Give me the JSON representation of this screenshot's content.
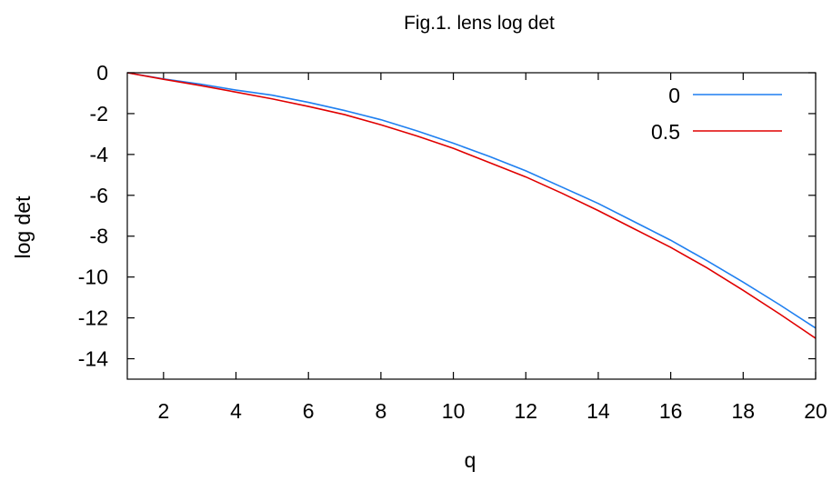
{
  "chart_data": {
    "type": "line",
    "title": "Fig.1. lens log det",
    "xlabel": "q",
    "ylabel": "log det",
    "xlim": [
      1,
      20
    ],
    "ylim": [
      -15,
      0
    ],
    "xticks": [
      2,
      4,
      6,
      8,
      10,
      12,
      14,
      16,
      18,
      20
    ],
    "yticks": [
      0,
      -2,
      -4,
      -6,
      -8,
      -10,
      -12,
      -14
    ],
    "xtick_labels": [
      "2",
      "4",
      "6",
      "8",
      "10",
      "12",
      "14",
      "16",
      "18",
      "20"
    ],
    "ytick_labels": [
      "0",
      "-2",
      "-4",
      "-6",
      "-8",
      "-10",
      "-12",
      "-14"
    ],
    "legend_position": "top-right",
    "zero_line": true,
    "grid": false,
    "series": [
      {
        "name": "0",
        "color": "#1e7ff0",
        "x": [
          1,
          2,
          3,
          4,
          5,
          6,
          7,
          8,
          9,
          10,
          11,
          12,
          13,
          14,
          15,
          16,
          17,
          18,
          19,
          20
        ],
        "y": [
          0.0,
          -0.3,
          -0.55,
          -0.85,
          -1.1,
          -1.45,
          -1.85,
          -2.3,
          -2.85,
          -3.45,
          -4.1,
          -4.8,
          -5.6,
          -6.4,
          -7.3,
          -8.2,
          -9.2,
          -10.25,
          -11.35,
          -12.5
        ]
      },
      {
        "name": "0.5",
        "color": "#e00000",
        "x": [
          1,
          2,
          3,
          4,
          5,
          6,
          7,
          8,
          9,
          10,
          11,
          12,
          13,
          14,
          15,
          16,
          17,
          18,
          19,
          20
        ],
        "y": [
          0.0,
          -0.32,
          -0.62,
          -0.95,
          -1.28,
          -1.65,
          -2.05,
          -2.55,
          -3.1,
          -3.7,
          -4.4,
          -5.1,
          -5.9,
          -6.75,
          -7.65,
          -8.55,
          -9.55,
          -10.65,
          -11.8,
          -13.0
        ]
      }
    ]
  }
}
